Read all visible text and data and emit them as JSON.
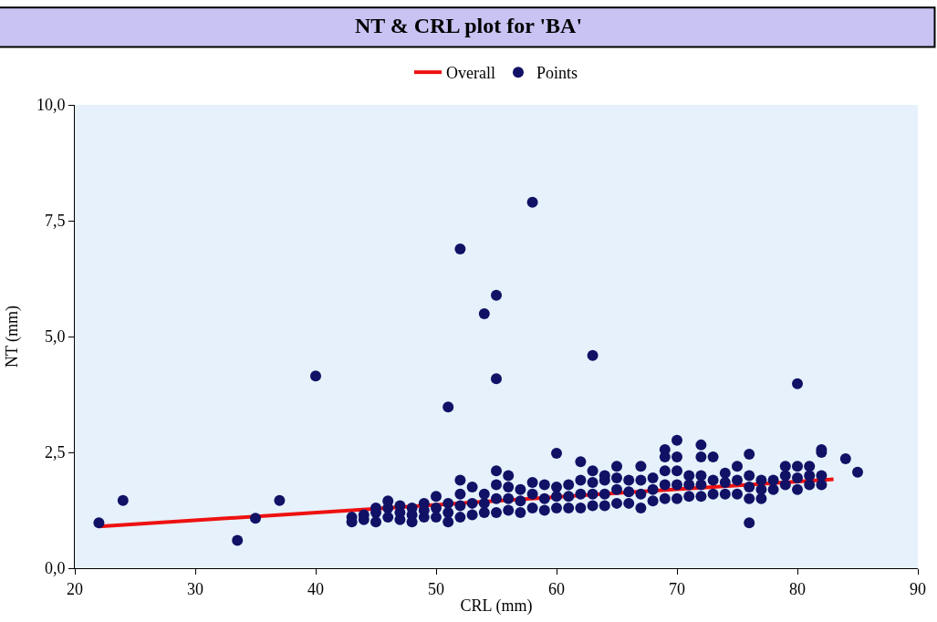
{
  "chart_data": {
    "type": "scatter",
    "title": "NT & CRL plot for 'BA'",
    "xlabel": "CRL (mm)",
    "ylabel": "NT (mm)",
    "xlim": [
      20,
      90
    ],
    "xticks": [
      20,
      30,
      40,
      50,
      60,
      70,
      80,
      90
    ],
    "ylim": [
      0,
      10
    ],
    "yticks": [
      {
        "value": 0,
        "label": "0,0"
      },
      {
        "value": 2.5,
        "label": "2,5"
      },
      {
        "value": 5,
        "label": "5,0"
      },
      {
        "value": 7.5,
        "label": "7,5"
      },
      {
        "value": 10,
        "label": "10,0"
      }
    ],
    "grid": false,
    "legend": "top",
    "marker": "circle",
    "series": [
      {
        "name": "Overall",
        "type": "line",
        "color": "#ee1111",
        "marker": "none",
        "x": [
          22,
          83
        ],
        "values": [
          0.9,
          1.92
        ]
      },
      {
        "name": "Points",
        "color": "#111166",
        "x": [
          22,
          24,
          33.5,
          35,
          37,
          40,
          51,
          52,
          54,
          55,
          55,
          58,
          63,
          60,
          80,
          76,
          70,
          72,
          69,
          82,
          84,
          85,
          76,
          43,
          43,
          44,
          44,
          45,
          45,
          45,
          46,
          46,
          46,
          47,
          47,
          47,
          48,
          48,
          48,
          49,
          49,
          49,
          50,
          50,
          50,
          51,
          51,
          51,
          52,
          52,
          52,
          52,
          53,
          53,
          53,
          54,
          54,
          54,
          55,
          55,
          55,
          55,
          56,
          56,
          56,
          56,
          57,
          57,
          57,
          58,
          58,
          58,
          59,
          59,
          59,
          60,
          60,
          60,
          61,
          61,
          61,
          62,
          62,
          62,
          62,
          63,
          63,
          63,
          63,
          64,
          64,
          64,
          64,
          65,
          65,
          65,
          65,
          66,
          66,
          66,
          67,
          67,
          67,
          67,
          68,
          68,
          68,
          69,
          69,
          69,
          69,
          70,
          70,
          70,
          70,
          71,
          71,
          71,
          72,
          72,
          72,
          72,
          73,
          73,
          73,
          74,
          74,
          74,
          75,
          75,
          75,
          76,
          76,
          76,
          77,
          77,
          77,
          78,
          78,
          79,
          79,
          79,
          80,
          80,
          80,
          81,
          81,
          81,
          82,
          82,
          82
        ],
        "values": [
          0.98,
          1.46,
          0.6,
          1.08,
          1.46,
          4.15,
          3.48,
          6.89,
          5.49,
          5.89,
          4.09,
          7.9,
          4.59,
          2.48,
          3.98,
          0.98,
          2.76,
          2.66,
          2.56,
          2.56,
          2.36,
          2.07,
          2.46,
          1.0,
          1.1,
          1.05,
          1.15,
          1.0,
          1.2,
          1.3,
          1.1,
          1.3,
          1.45,
          1.05,
          1.2,
          1.35,
          1.0,
          1.15,
          1.3,
          1.1,
          1.25,
          1.4,
          1.1,
          1.3,
          1.55,
          1.0,
          1.2,
          1.4,
          1.1,
          1.35,
          1.6,
          1.9,
          1.15,
          1.4,
          1.75,
          1.2,
          1.4,
          1.6,
          1.2,
          1.5,
          1.8,
          2.1,
          1.25,
          1.5,
          1.75,
          2.0,
          1.2,
          1.45,
          1.7,
          1.3,
          1.6,
          1.85,
          1.25,
          1.5,
          1.8,
          1.3,
          1.55,
          1.75,
          1.3,
          1.55,
          1.8,
          1.3,
          1.6,
          1.9,
          2.3,
          1.35,
          1.6,
          1.85,
          2.1,
          1.35,
          1.6,
          1.9,
          2.0,
          1.4,
          1.7,
          1.95,
          2.2,
          1.4,
          1.65,
          1.9,
          1.3,
          1.6,
          1.9,
          2.2,
          1.45,
          1.7,
          1.95,
          1.5,
          1.8,
          2.1,
          2.4,
          1.5,
          1.8,
          2.1,
          2.4,
          1.55,
          1.8,
          2.0,
          1.55,
          1.8,
          2.0,
          2.4,
          1.6,
          1.9,
          2.4,
          1.6,
          1.85,
          2.05,
          1.6,
          1.9,
          2.2,
          1.5,
          1.75,
          2.0,
          1.5,
          1.7,
          1.9,
          1.7,
          1.9,
          1.8,
          2.0,
          2.2,
          1.7,
          1.95,
          2.2,
          1.8,
          2.0,
          2.2,
          1.8,
          2.0,
          2.5
        ]
      }
    ]
  }
}
